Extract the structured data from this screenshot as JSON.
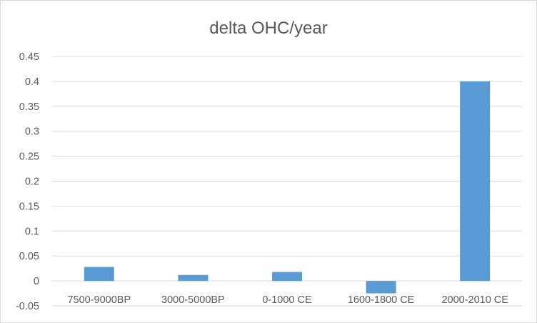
{
  "chart_data": {
    "type": "bar",
    "title": "delta OHC/year",
    "categories": [
      "7500-9000BP",
      "3000-5000BP",
      "0-1000 CE",
      "1600-1800 CE",
      "2000-2010 CE"
    ],
    "values": [
      0.028,
      0.012,
      0.018,
      -0.025,
      0.4
    ],
    "ylim": [
      -0.05,
      0.45
    ],
    "yticks": [
      "0.45",
      "0.4",
      "0.35",
      "0.3",
      "0.25",
      "0.2",
      "0.15",
      "0.1",
      "0.05",
      "0",
      "-0.05"
    ],
    "xlabel": "",
    "ylabel": "",
    "grid": true,
    "legend": "none",
    "bar_color": "#5b9bd5"
  }
}
